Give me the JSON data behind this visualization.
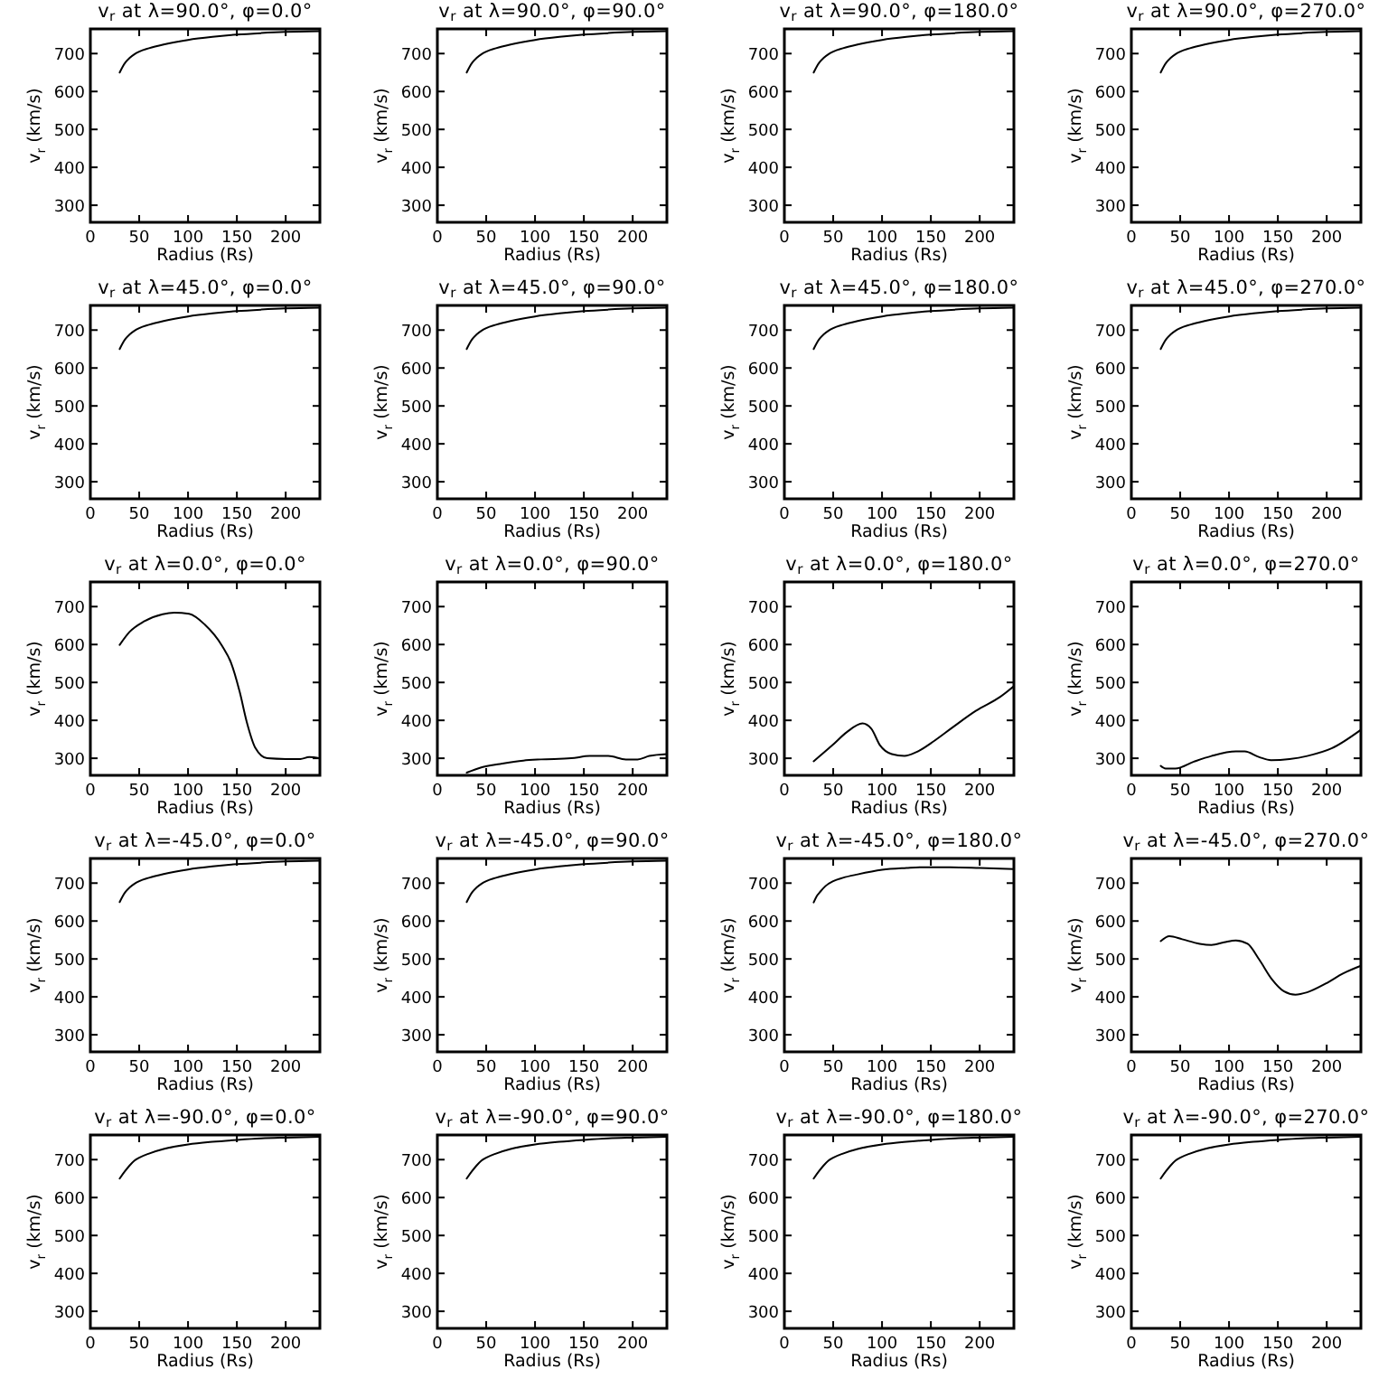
{
  "chart_data": [
    {
      "type": "line",
      "title": "v$_{r}$ at λ=90.0°, φ=0.0°",
      "xlabel": "Radius (Rs)",
      "ylabel": "v$_{r}$ (km/s)",
      "xlim": [
        0,
        235
      ],
      "ylim": [
        255,
        765
      ],
      "xticks": [
        0,
        50,
        100,
        150,
        200
      ],
      "yticks": [
        300,
        400,
        500,
        600,
        700
      ],
      "color": "#000000",
      "x": [
        30,
        33,
        36,
        40,
        45,
        50,
        60,
        75,
        100,
        125,
        150,
        175,
        200,
        235
      ],
      "values": [
        650,
        665,
        677,
        688,
        698,
        705,
        714,
        724,
        736,
        744,
        750,
        754,
        757,
        759
      ]
    },
    {
      "type": "line",
      "title": "v$_{r}$ at λ=90.0°, φ=90.0°",
      "xlabel": "Radius (Rs)",
      "ylabel": "v$_{r}$ (km/s)",
      "xlim": [
        0,
        235
      ],
      "ylim": [
        255,
        765
      ],
      "xticks": [
        0,
        50,
        100,
        150,
        200
      ],
      "yticks": [
        300,
        400,
        500,
        600,
        700
      ],
      "color": "#000000",
      "x": [
        30,
        33,
        36,
        40,
        45,
        50,
        60,
        75,
        100,
        125,
        150,
        175,
        200,
        235
      ],
      "values": [
        650,
        665,
        677,
        688,
        698,
        705,
        714,
        724,
        736,
        744,
        750,
        754,
        757,
        759
      ]
    },
    {
      "type": "line",
      "title": "v$_{r}$ at λ=90.0°, φ=180.0°",
      "xlabel": "Radius (Rs)",
      "ylabel": "v$_{r}$ (km/s)",
      "xlim": [
        0,
        235
      ],
      "ylim": [
        255,
        765
      ],
      "xticks": [
        0,
        50,
        100,
        150,
        200
      ],
      "yticks": [
        300,
        400,
        500,
        600,
        700
      ],
      "color": "#000000",
      "x": [
        30,
        33,
        36,
        40,
        45,
        50,
        60,
        75,
        100,
        125,
        150,
        175,
        200,
        235
      ],
      "values": [
        650,
        665,
        677,
        688,
        698,
        705,
        714,
        724,
        736,
        744,
        750,
        754,
        757,
        759
      ]
    },
    {
      "type": "line",
      "title": "v$_{r}$ at λ=90.0°, φ=270.0°",
      "xlabel": "Radius (Rs)",
      "ylabel": "v$_{r}$ (km/s)",
      "xlim": [
        0,
        235
      ],
      "ylim": [
        255,
        765
      ],
      "xticks": [
        0,
        50,
        100,
        150,
        200
      ],
      "yticks": [
        300,
        400,
        500,
        600,
        700
      ],
      "color": "#000000",
      "x": [
        30,
        33,
        36,
        40,
        45,
        50,
        60,
        75,
        100,
        125,
        150,
        175,
        200,
        235
      ],
      "values": [
        650,
        665,
        677,
        688,
        698,
        705,
        714,
        724,
        736,
        744,
        750,
        754,
        757,
        759
      ]
    },
    {
      "type": "line",
      "title": "v$_{r}$ at λ=45.0°, φ=0.0°",
      "xlabel": "Radius (Rs)",
      "ylabel": "v$_{r}$ (km/s)",
      "xlim": [
        0,
        235
      ],
      "ylim": [
        255,
        765
      ],
      "xticks": [
        0,
        50,
        100,
        150,
        200
      ],
      "yticks": [
        300,
        400,
        500,
        600,
        700
      ],
      "color": "#000000",
      "x": [
        30,
        33,
        36,
        40,
        45,
        50,
        60,
        75,
        100,
        125,
        150,
        175,
        200,
        235
      ],
      "values": [
        650,
        665,
        677,
        688,
        698,
        705,
        714,
        724,
        736,
        744,
        750,
        754,
        757,
        759
      ]
    },
    {
      "type": "line",
      "title": "v$_{r}$ at λ=45.0°, φ=90.0°",
      "xlabel": "Radius (Rs)",
      "ylabel": "v$_{r}$ (km/s)",
      "xlim": [
        0,
        235
      ],
      "ylim": [
        255,
        765
      ],
      "xticks": [
        0,
        50,
        100,
        150,
        200
      ],
      "yticks": [
        300,
        400,
        500,
        600,
        700
      ],
      "color": "#000000",
      "x": [
        30,
        33,
        36,
        40,
        45,
        50,
        60,
        75,
        100,
        125,
        150,
        175,
        200,
        235
      ],
      "values": [
        650,
        665,
        677,
        688,
        698,
        705,
        714,
        724,
        736,
        744,
        750,
        754,
        757,
        759
      ]
    },
    {
      "type": "line",
      "title": "v$_{r}$ at λ=45.0°, φ=180.0°",
      "xlabel": "Radius (Rs)",
      "ylabel": "v$_{r}$ (km/s)",
      "xlim": [
        0,
        235
      ],
      "ylim": [
        255,
        765
      ],
      "xticks": [
        0,
        50,
        100,
        150,
        200
      ],
      "yticks": [
        300,
        400,
        500,
        600,
        700
      ],
      "color": "#000000",
      "x": [
        30,
        33,
        36,
        40,
        45,
        50,
        60,
        75,
        100,
        125,
        150,
        175,
        200,
        235
      ],
      "values": [
        650,
        665,
        677,
        688,
        698,
        705,
        714,
        724,
        736,
        744,
        750,
        754,
        757,
        759
      ]
    },
    {
      "type": "line",
      "title": "v$_{r}$ at λ=45.0°, φ=270.0°",
      "xlabel": "Radius (Rs)",
      "ylabel": "v$_{r}$ (km/s)",
      "xlim": [
        0,
        235
      ],
      "ylim": [
        255,
        765
      ],
      "xticks": [
        0,
        50,
        100,
        150,
        200
      ],
      "yticks": [
        300,
        400,
        500,
        600,
        700
      ],
      "color": "#000000",
      "x": [
        30,
        33,
        36,
        40,
        45,
        50,
        60,
        75,
        100,
        125,
        150,
        175,
        200,
        235
      ],
      "values": [
        650,
        665,
        677,
        688,
        698,
        705,
        714,
        724,
        736,
        744,
        750,
        754,
        757,
        759
      ]
    },
    {
      "type": "line",
      "title": "v$_{r}$ at λ=0.0°, φ=0.0°",
      "xlabel": "Radius (Rs)",
      "ylabel": "v$_{r}$ (km/s)",
      "xlim": [
        0,
        235
      ],
      "ylim": [
        255,
        765
      ],
      "xticks": [
        0,
        50,
        100,
        150,
        200
      ],
      "yticks": [
        300,
        400,
        500,
        600,
        700
      ],
      "color": "#000000",
      "x": [
        30,
        40,
        55,
        74,
        86,
        101,
        117,
        135,
        144,
        153,
        160,
        169,
        181,
        200,
        215,
        224,
        235
      ],
      "values": [
        599,
        633,
        661,
        680,
        684,
        681,
        653,
        596,
        552,
        474,
        397,
        327,
        300,
        298,
        298,
        303,
        300
      ]
    },
    {
      "type": "line",
      "title": "v$_{r}$ at λ=0.0°, φ=90.0°",
      "xlabel": "Radius (Rs)",
      "ylabel": "v$_{r}$ (km/s)",
      "xlim": [
        0,
        235
      ],
      "ylim": [
        255,
        765
      ],
      "xticks": [
        0,
        50,
        100,
        150,
        200
      ],
      "yticks": [
        300,
        400,
        500,
        600,
        700
      ],
      "color": "#000000",
      "x": [
        30,
        45,
        64,
        88,
        106,
        137,
        156,
        175,
        193,
        205,
        217,
        235
      ],
      "values": [
        262,
        276,
        285,
        294,
        297,
        300,
        306,
        306,
        297,
        297,
        306,
        311
      ]
    },
    {
      "type": "line",
      "title": "v$_{r}$ at λ=0.0°, φ=180.0°",
      "xlabel": "Radius (Rs)",
      "ylabel": "v$_{r}$ (km/s)",
      "xlim": [
        0,
        235
      ],
      "ylim": [
        255,
        765
      ],
      "xticks": [
        0,
        50,
        100,
        150,
        200
      ],
      "yticks": [
        300,
        400,
        500,
        600,
        700
      ],
      "color": "#000000",
      "x": [
        30,
        49,
        64,
        80,
        89,
        98,
        110,
        123,
        135,
        153,
        172,
        196,
        221,
        235
      ],
      "values": [
        292,
        334,
        369,
        392,
        378,
        334,
        311,
        306,
        316,
        345,
        381,
        425,
        462,
        490
      ]
    },
    {
      "type": "line",
      "title": "v$_{r}$ at λ=0.0°, φ=270.0°",
      "xlabel": "Radius (Rs)",
      "ylabel": "v$_{r}$ (km/s)",
      "xlim": [
        0,
        235
      ],
      "ylim": [
        255,
        765
      ],
      "xticks": [
        0,
        50,
        100,
        150,
        200
      ],
      "yticks": [
        300,
        400,
        500,
        600,
        700
      ],
      "color": "#000000",
      "x": [
        30,
        35,
        45,
        64,
        82,
        107,
        116,
        131,
        143,
        162,
        180,
        205,
        235
      ],
      "values": [
        280,
        273,
        273,
        291,
        306,
        318,
        318,
        303,
        295,
        298,
        306,
        326,
        375
      ]
    },
    {
      "type": "line",
      "title": "v$_{r}$ at λ=-45.0°, φ=0.0°",
      "xlabel": "Radius (Rs)",
      "ylabel": "v$_{r}$ (km/s)",
      "xlim": [
        0,
        235
      ],
      "ylim": [
        255,
        765
      ],
      "xticks": [
        0,
        50,
        100,
        150,
        200
      ],
      "yticks": [
        300,
        400,
        500,
        600,
        700
      ],
      "color": "#000000",
      "x": [
        30,
        33,
        36,
        40,
        45,
        50,
        60,
        75,
        100,
        125,
        150,
        175,
        200,
        235
      ],
      "values": [
        650,
        665,
        677,
        688,
        698,
        705,
        714,
        724,
        736,
        744,
        750,
        754,
        757,
        759
      ]
    },
    {
      "type": "line",
      "title": "v$_{r}$ at λ=-45.0°, φ=90.0°",
      "xlabel": "Radius (Rs)",
      "ylabel": "v$_{r}$ (km/s)",
      "xlim": [
        0,
        235
      ],
      "ylim": [
        255,
        765
      ],
      "xticks": [
        0,
        50,
        100,
        150,
        200
      ],
      "yticks": [
        300,
        400,
        500,
        600,
        700
      ],
      "color": "#000000",
      "x": [
        30,
        33,
        36,
        40,
        45,
        50,
        60,
        75,
        100,
        125,
        150,
        175,
        200,
        235
      ],
      "values": [
        650,
        665,
        677,
        688,
        698,
        705,
        714,
        724,
        736,
        744,
        750,
        754,
        757,
        759
      ]
    },
    {
      "type": "line",
      "title": "v$_{r}$ at λ=-45.0°, φ=180.0°",
      "xlabel": "Radius (Rs)",
      "ylabel": "v$_{r}$ (km/s)",
      "xlim": [
        0,
        235
      ],
      "ylim": [
        255,
        765
      ],
      "xticks": [
        0,
        50,
        100,
        150,
        200
      ],
      "yticks": [
        300,
        400,
        500,
        600,
        700
      ],
      "color": "#000000",
      "x": [
        30,
        33,
        37,
        42,
        50,
        60,
        75,
        100,
        125,
        140,
        170,
        200,
        235
      ],
      "values": [
        649,
        665,
        678,
        692,
        705,
        714,
        723,
        735,
        740,
        742,
        742,
        740,
        737
      ]
    },
    {
      "type": "line",
      "title": "v$_{r}$ at λ=-45.0°, φ=270.0°",
      "xlabel": "Radius (Rs)",
      "ylabel": "v$_{r}$ (km/s)",
      "xlim": [
        0,
        235
      ],
      "ylim": [
        255,
        765
      ],
      "xticks": [
        0,
        50,
        100,
        150,
        200
      ],
      "yticks": [
        300,
        400,
        500,
        600,
        700
      ],
      "color": "#000000",
      "x": [
        30,
        39,
        52,
        70,
        82,
        95,
        107,
        119,
        131,
        144,
        156,
        168,
        180,
        199,
        217,
        235
      ],
      "values": [
        547,
        560,
        552,
        540,
        537,
        544,
        549,
        540,
        498,
        446,
        415,
        406,
        412,
        435,
        462,
        482
      ]
    },
    {
      "type": "line",
      "title": "v$_{r}$ at λ=-90.0°, φ=0.0°",
      "xlabel": "Radius (Rs)",
      "ylabel": "v$_{r}$ (km/s)",
      "xlim": [
        0,
        235
      ],
      "ylim": [
        255,
        765
      ],
      "xticks": [
        0,
        50,
        100,
        150,
        200
      ],
      "yticks": [
        300,
        400,
        500,
        600,
        700
      ],
      "color": "#000000",
      "x": [
        30,
        35,
        40,
        45,
        50,
        60,
        75,
        100,
        125,
        150,
        175,
        200,
        235
      ],
      "values": [
        650,
        668,
        684,
        697,
        705,
        716,
        728,
        740,
        747,
        752,
        756,
        758,
        760
      ]
    },
    {
      "type": "line",
      "title": "v$_{r}$ at λ=-90.0°, φ=90.0°",
      "xlabel": "Radius (Rs)",
      "ylabel": "v$_{r}$ (km/s)",
      "xlim": [
        0,
        235
      ],
      "ylim": [
        255,
        765
      ],
      "xticks": [
        0,
        50,
        100,
        150,
        200
      ],
      "yticks": [
        300,
        400,
        500,
        600,
        700
      ],
      "color": "#000000",
      "x": [
        30,
        35,
        40,
        45,
        50,
        60,
        75,
        100,
        125,
        150,
        175,
        200,
        235
      ],
      "values": [
        650,
        668,
        684,
        697,
        705,
        716,
        728,
        740,
        747,
        752,
        756,
        758,
        760
      ]
    },
    {
      "type": "line",
      "title": "v$_{r}$ at λ=-90.0°, φ=180.0°",
      "xlabel": "Radius (Rs)",
      "ylabel": "v$_{r}$ (km/s)",
      "xlim": [
        0,
        235
      ],
      "ylim": [
        255,
        765
      ],
      "xticks": [
        0,
        50,
        100,
        150,
        200
      ],
      "yticks": [
        300,
        400,
        500,
        600,
        700
      ],
      "color": "#000000",
      "x": [
        30,
        35,
        40,
        45,
        50,
        60,
        75,
        100,
        125,
        150,
        175,
        200,
        235
      ],
      "values": [
        650,
        668,
        684,
        697,
        705,
        716,
        728,
        740,
        747,
        752,
        756,
        758,
        760
      ]
    },
    {
      "type": "line",
      "title": "v$_{r}$ at λ=-90.0°, φ=270.0°",
      "xlabel": "Radius (Rs)",
      "ylabel": "v$_{r}$ (km/s)",
      "xlim": [
        0,
        235
      ],
      "ylim": [
        255,
        765
      ],
      "xticks": [
        0,
        50,
        100,
        150,
        200
      ],
      "yticks": [
        300,
        400,
        500,
        600,
        700
      ],
      "color": "#000000",
      "x": [
        30,
        35,
        40,
        45,
        50,
        60,
        75,
        100,
        125,
        150,
        175,
        200,
        235
      ],
      "values": [
        650,
        668,
        684,
        697,
        705,
        716,
        728,
        740,
        747,
        752,
        756,
        758,
        760
      ]
    }
  ]
}
